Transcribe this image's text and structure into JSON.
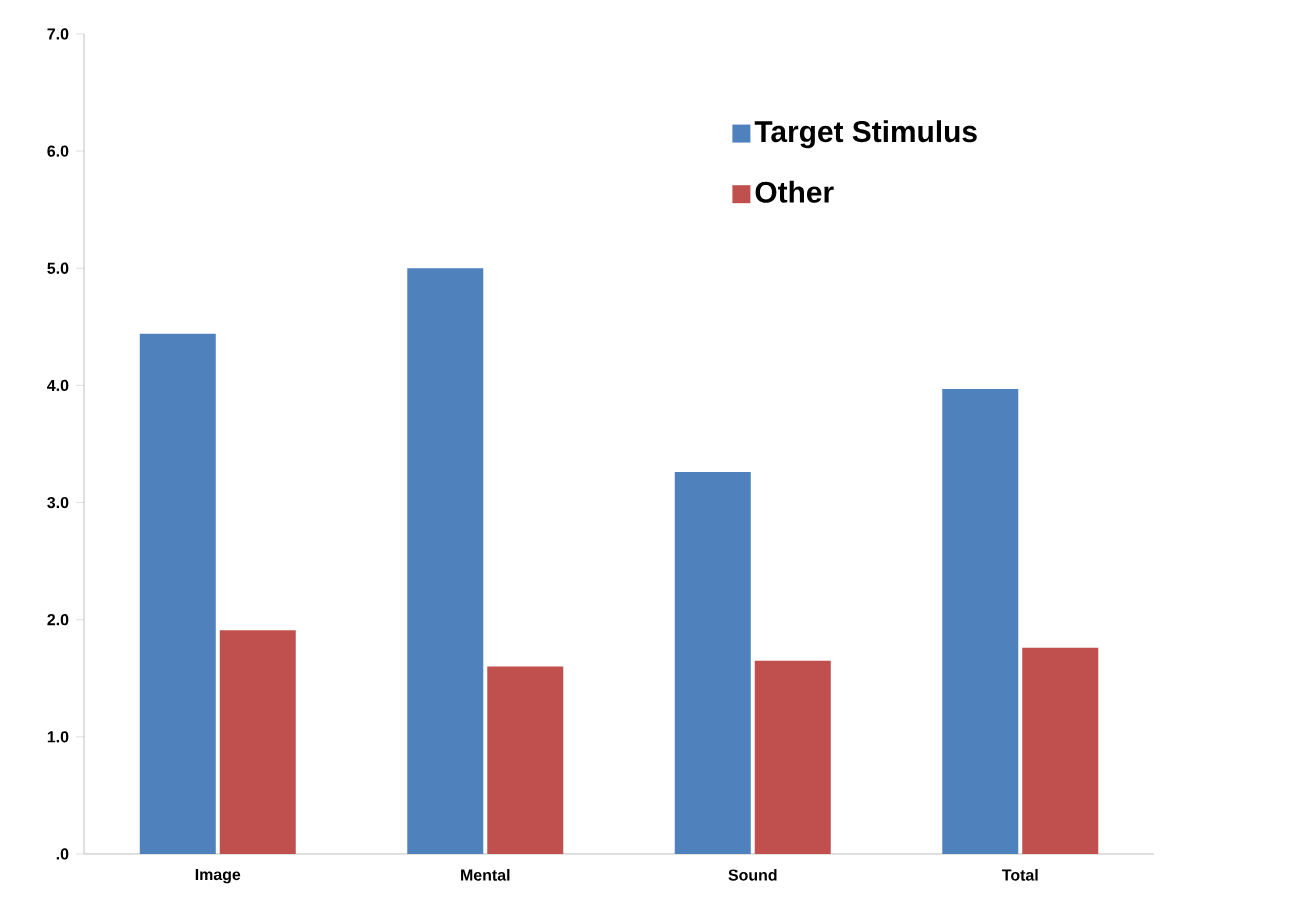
{
  "chart_data": {
    "type": "bar",
    "categories": [
      "Image",
      "Mental",
      "Sound",
      "Total"
    ],
    "series": [
      {
        "name": "Target Stimulus",
        "color": "#4f81bd",
        "values": [
          4.44,
          5.0,
          3.26,
          3.97
        ]
      },
      {
        "name": "Other",
        "color": "#c0504d",
        "values": [
          1.91,
          1.6,
          1.65,
          1.76
        ]
      }
    ],
    "ylim": [
      0,
      7
    ],
    "yticks": [
      {
        "value": 0,
        "label": ".0"
      },
      {
        "value": 1,
        "label": "1.0"
      },
      {
        "value": 2,
        "label": "2.0"
      },
      {
        "value": 3,
        "label": "3.0"
      },
      {
        "value": 4,
        "label": "4.0"
      },
      {
        "value": 5,
        "label": "5.0"
      },
      {
        "value": 6,
        "label": "6.0"
      },
      {
        "value": 7,
        "label": "7.0"
      }
    ],
    "grid": false,
    "legend": "top right"
  }
}
